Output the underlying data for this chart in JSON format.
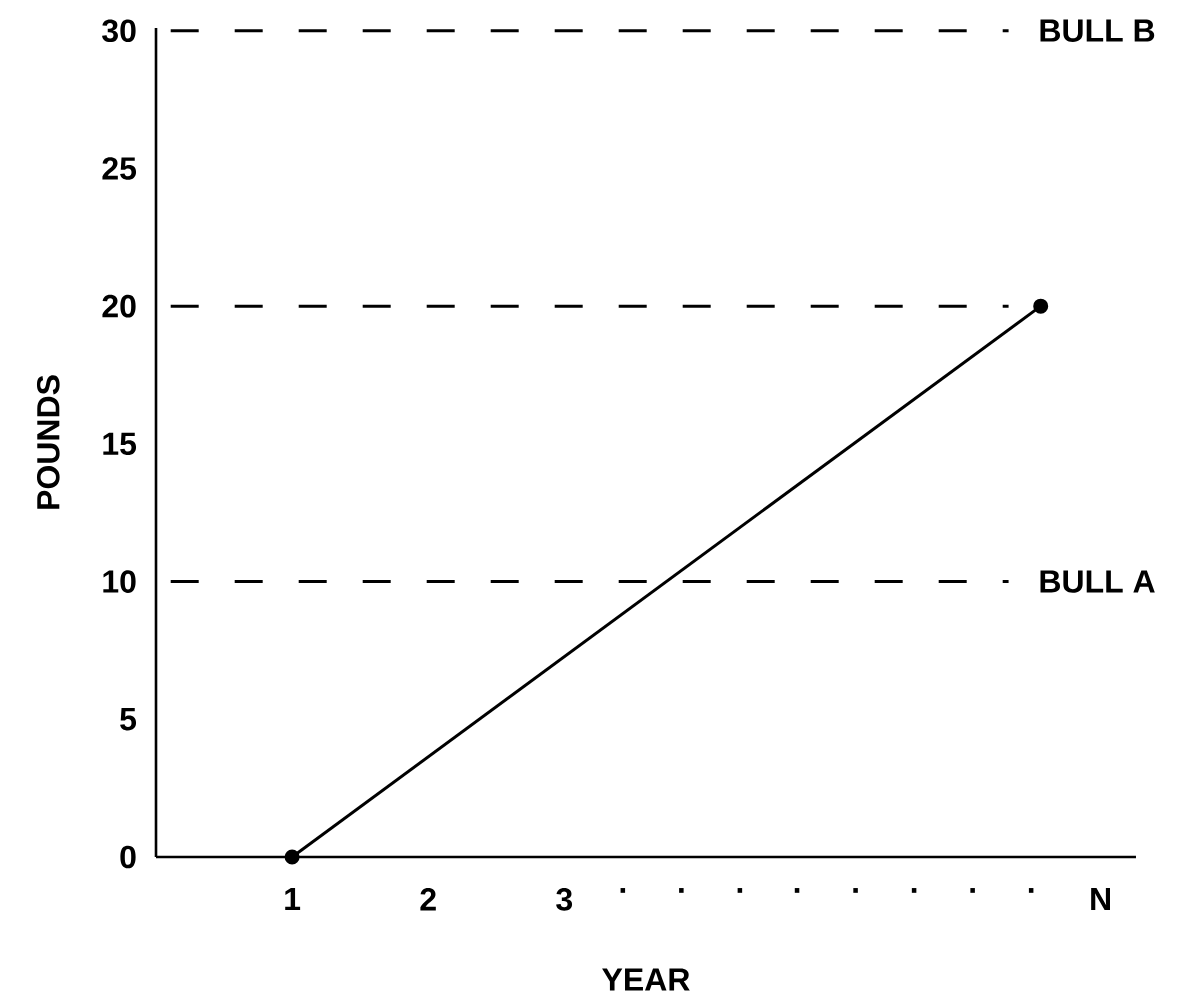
{
  "chart_data": {
    "type": "line",
    "xlabel": "YEAR",
    "ylabel": "POUNDS",
    "x": [
      1,
      6.5
    ],
    "values": [
      0,
      20
    ],
    "color": "#000000",
    "marker": "circle",
    "line_style": "solid",
    "xlim": [
      0,
      7.2
    ],
    "xticks": [
      1,
      2,
      3,
      {
        "value": 3.43,
        "label": "."
      },
      {
        "value": 3.86,
        "label": "."
      },
      {
        "value": 4.29,
        "label": "."
      },
      {
        "value": 4.71,
        "label": "."
      },
      {
        "value": 5.14,
        "label": "."
      },
      {
        "value": 5.57,
        "label": "."
      },
      {
        "value": 6.0,
        "label": "."
      },
      {
        "value": 6.43,
        "label": "."
      },
      {
        "value": 6.94,
        "label": "N"
      }
    ],
    "ylim": [
      0,
      30.1
    ],
    "yticks": [
      0,
      5,
      10,
      15,
      20,
      25,
      30
    ],
    "ref_lines": [
      {
        "axis": "y",
        "value": 10,
        "label": "BULL A",
        "line_style": "dashed"
      },
      {
        "axis": "y",
        "value": 20,
        "line_style": "dashed"
      },
      {
        "axis": "y",
        "value": 30,
        "label": "BULL B",
        "line_style": "dashed"
      }
    ],
    "grid": false
  }
}
